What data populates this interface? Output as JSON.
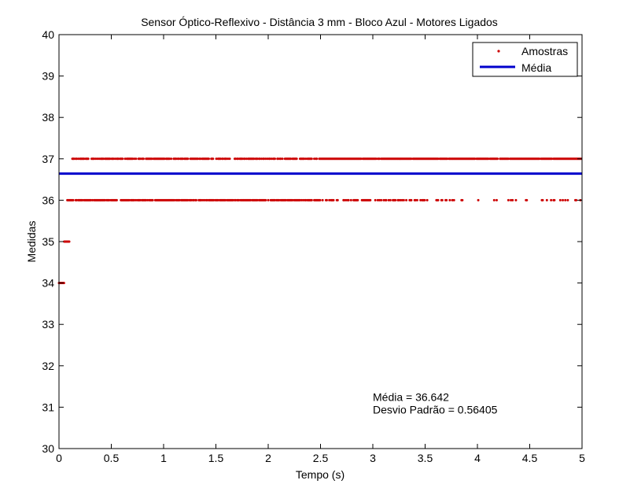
{
  "chart_data": {
    "type": "scatter",
    "title": "Sensor Óptico-Reflexivo - Distância 3 mm - Bloco Azul - Motores Ligados",
    "xlabel": "Tempo (s)",
    "ylabel": "Medidas",
    "xlim": [
      0,
      5
    ],
    "ylim": [
      30,
      40
    ],
    "xticks": [
      0,
      0.5,
      1,
      1.5,
      2,
      2.5,
      3,
      3.5,
      4,
      4.5,
      5
    ],
    "xtick_labels": [
      "0",
      "0.5",
      "1",
      "1.5",
      "2",
      "2.5",
      "3",
      "3.5",
      "4",
      "4.5",
      "5"
    ],
    "yticks": [
      30,
      31,
      32,
      33,
      34,
      35,
      36,
      37,
      38,
      39,
      40
    ],
    "ytick_labels": [
      "30",
      "31",
      "32",
      "33",
      "34",
      "35",
      "36",
      "37",
      "38",
      "39",
      "40"
    ],
    "grid": false,
    "legend_position": "top-right",
    "series": [
      {
        "name": "Amostras",
        "kind": "markers",
        "color": "#cc0000",
        "levels": [
          {
            "y": 34,
            "x_ranges": [
              [
                0.0,
                0.05
              ]
            ]
          },
          {
            "y": 35,
            "x_ranges": [
              [
                0.05,
                0.1
              ]
            ]
          },
          {
            "y": 36,
            "x_ranges": [
              [
                0.08,
                5.0
              ]
            ]
          },
          {
            "y": 37,
            "x_ranges": [
              [
                0.12,
                5.0
              ]
            ]
          }
        ]
      },
      {
        "name": "Média",
        "kind": "line",
        "color": "#0000cc",
        "y": 36.642
      }
    ],
    "annotations": [
      {
        "text": "Média = 36.642",
        "x": 3.0,
        "y": 31.15
      },
      {
        "text": "Desvio Padrão = 0.56405",
        "x": 3.0,
        "y": 30.85
      }
    ]
  }
}
